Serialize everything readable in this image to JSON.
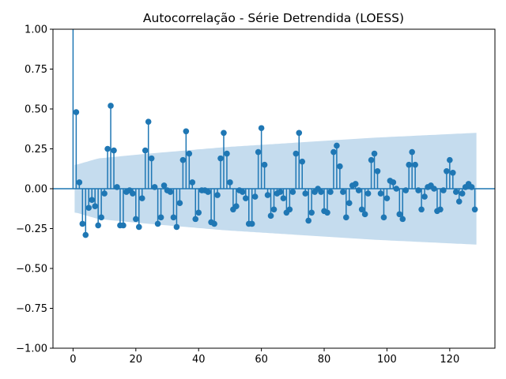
{
  "chart_data": {
    "type": "stem",
    "title": "Autocorrelação - Série Detrendida (LOESS)",
    "xlabel": "",
    "ylabel": "",
    "xlim": [
      -6.4,
      134.4
    ],
    "ylim": [
      -1.0,
      1.0
    ],
    "xticks": [
      0,
      20,
      40,
      60,
      80,
      100,
      120
    ],
    "xtick_labels": [
      "0",
      "20",
      "40",
      "60",
      "80",
      "100",
      "120"
    ],
    "yticks": [
      -1.0,
      -0.75,
      -0.5,
      -0.25,
      0.0,
      0.25,
      0.5,
      0.75,
      1.0
    ],
    "ytick_labels": [
      "−1.00",
      "−0.75",
      "−0.50",
      "−0.25",
      "0.00",
      "0.25",
      "0.50",
      "0.75",
      "1.00"
    ],
    "lags": [
      1,
      2,
      3,
      4,
      5,
      6,
      7,
      8,
      9,
      10,
      11,
      12,
      13,
      14,
      15,
      16,
      17,
      18,
      19,
      20,
      21,
      22,
      23,
      24,
      25,
      26,
      27,
      28,
      29,
      30,
      31,
      32,
      33,
      34,
      35,
      36,
      37,
      38,
      39,
      40,
      41,
      42,
      43,
      44,
      45,
      46,
      47,
      48,
      49,
      50,
      51,
      52,
      53,
      54,
      55,
      56,
      57,
      58,
      59,
      60,
      61,
      62,
      63,
      64,
      65,
      66,
      67,
      68,
      69,
      70,
      71,
      72,
      73,
      74,
      75,
      76,
      77,
      78,
      79,
      80,
      81,
      82,
      83,
      84,
      85,
      86,
      87,
      88,
      89,
      90,
      91,
      92,
      93,
      94,
      95,
      96,
      97,
      98,
      99,
      100,
      101,
      102,
      103,
      104,
      105,
      106,
      107,
      108,
      109,
      110,
      111,
      112,
      113,
      114,
      115,
      116,
      117,
      118,
      119,
      120,
      121,
      122,
      123,
      124,
      125,
      126,
      127,
      128
    ],
    "values": [
      0.48,
      0.04,
      -0.22,
      -0.29,
      -0.12,
      -0.07,
      -0.11,
      -0.23,
      -0.18,
      -0.03,
      0.25,
      0.52,
      0.24,
      0.01,
      -0.23,
      -0.23,
      -0.02,
      -0.01,
      -0.03,
      -0.19,
      -0.24,
      -0.06,
      0.24,
      0.42,
      0.19,
      0.01,
      -0.22,
      -0.18,
      0.02,
      -0.01,
      -0.02,
      -0.18,
      -0.24,
      -0.09,
      0.18,
      0.36,
      0.22,
      0.04,
      -0.19,
      -0.15,
      -0.01,
      -0.01,
      -0.02,
      -0.21,
      -0.22,
      -0.04,
      0.19,
      0.35,
      0.22,
      0.04,
      -0.13,
      -0.11,
      -0.01,
      -0.02,
      -0.06,
      -0.22,
      -0.22,
      -0.05,
      0.23,
      0.38,
      0.15,
      -0.04,
      -0.17,
      -0.13,
      -0.03,
      -0.02,
      -0.06,
      -0.15,
      -0.13,
      -0.02,
      0.22,
      0.35,
      0.17,
      -0.03,
      -0.2,
      -0.15,
      -0.02,
      0.0,
      -0.02,
      -0.14,
      -0.15,
      -0.02,
      0.23,
      0.27,
      0.14,
      -0.02,
      -0.18,
      -0.09,
      0.02,
      0.03,
      -0.01,
      -0.13,
      -0.16,
      -0.03,
      0.18,
      0.22,
      0.11,
      -0.03,
      -0.18,
      -0.06,
      0.05,
      0.04,
      0.0,
      -0.16,
      -0.19,
      -0.01,
      0.15,
      0.23,
      0.15,
      -0.01,
      -0.13,
      -0.05,
      0.01,
      0.02,
      0.0,
      -0.14,
      -0.13,
      -0.01,
      0.11,
      0.18,
      0.1,
      -0.02,
      -0.08,
      -0.03,
      0.01,
      0.03,
      0.01,
      -0.13
    ],
    "lag0_value": 1.0,
    "confidence_band": {
      "lags": [
        1,
        8,
        24,
        48,
        72,
        96,
        128
      ],
      "upper": [
        0.15,
        0.19,
        0.22,
        0.26,
        0.29,
        0.32,
        0.35
      ],
      "lower": [
        -0.15,
        -0.19,
        -0.22,
        -0.26,
        -0.29,
        -0.32,
        -0.35
      ]
    },
    "colors": {
      "stem": "#1f77b4",
      "marker": "#1f77b4",
      "band": "#c5dcee",
      "zero_line": "#1f77b4",
      "axes": "#000000"
    }
  }
}
